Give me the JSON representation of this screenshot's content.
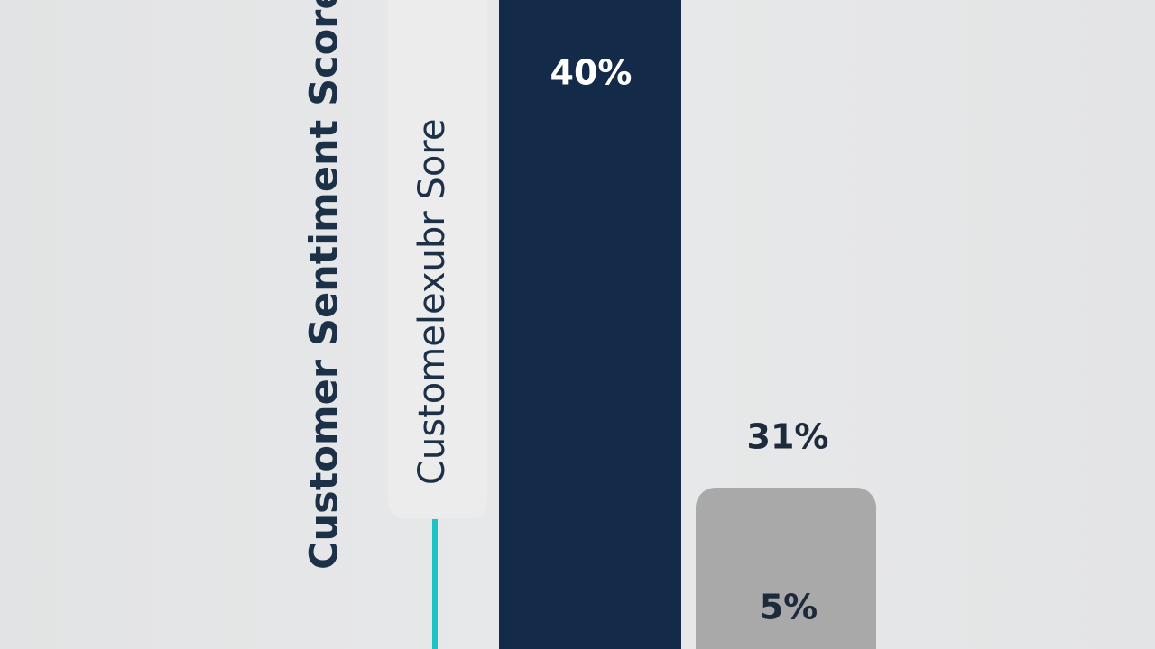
{
  "title": "Customer Sentiment Score",
  "panel_label": "Customelexubr Sore",
  "bars": [
    {
      "label": "40%"
    },
    {
      "label": "31%"
    },
    {
      "label": "5%"
    }
  ]
}
